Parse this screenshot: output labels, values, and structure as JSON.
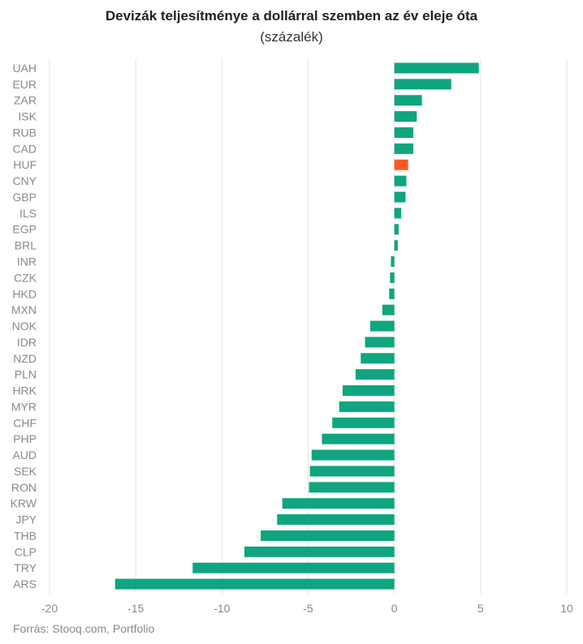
{
  "header": {
    "title": "Devizák teljesítménye a dollárral szemben az év eleje óta",
    "subtitle": "(százalék)"
  },
  "footer": {
    "source": "Forrás: Stooq.com, Portfolio"
  },
  "colors": {
    "bar": "#0fa57f",
    "highlight": "#ff5a1f",
    "grid": "#e3e3e3",
    "tick": "#8a8a8a"
  },
  "chart_data": {
    "type": "bar",
    "orientation": "horizontal",
    "title": "Devizák teljesítménye a dollárral szemben az év eleje óta",
    "subtitle": "(százalék)",
    "xlim": [
      -20,
      10
    ],
    "xticks": [
      -20,
      -15,
      -10,
      -5,
      0,
      5,
      10
    ],
    "grid": true,
    "highlight": "HUF",
    "categories": [
      "UAH",
      "EUR",
      "ZAR",
      "ISK",
      "RUB",
      "CAD",
      "HUF",
      "CNY",
      "GBP",
      "ILS",
      "EGP",
      "BRL",
      "INR",
      "CZK",
      "HKD",
      "MXN",
      "NOK",
      "IDR",
      "NZD",
      "PLN",
      "HRK",
      "MYR",
      "CHF",
      "PHP",
      "AUD",
      "SEK",
      "RON",
      "KRW",
      "JPY",
      "THB",
      "CLP",
      "TRY",
      "ARS"
    ],
    "values": [
      4.9,
      3.3,
      1.6,
      1.3,
      1.1,
      1.1,
      0.8,
      0.7,
      0.65,
      0.4,
      0.25,
      0.2,
      -0.2,
      -0.25,
      -0.3,
      -0.7,
      -1.4,
      -1.7,
      -1.95,
      -2.25,
      -3.0,
      -3.2,
      -3.6,
      -4.2,
      -4.8,
      -4.9,
      -4.95,
      -6.5,
      -6.8,
      -7.75,
      -8.7,
      -11.7,
      -16.2
    ]
  }
}
